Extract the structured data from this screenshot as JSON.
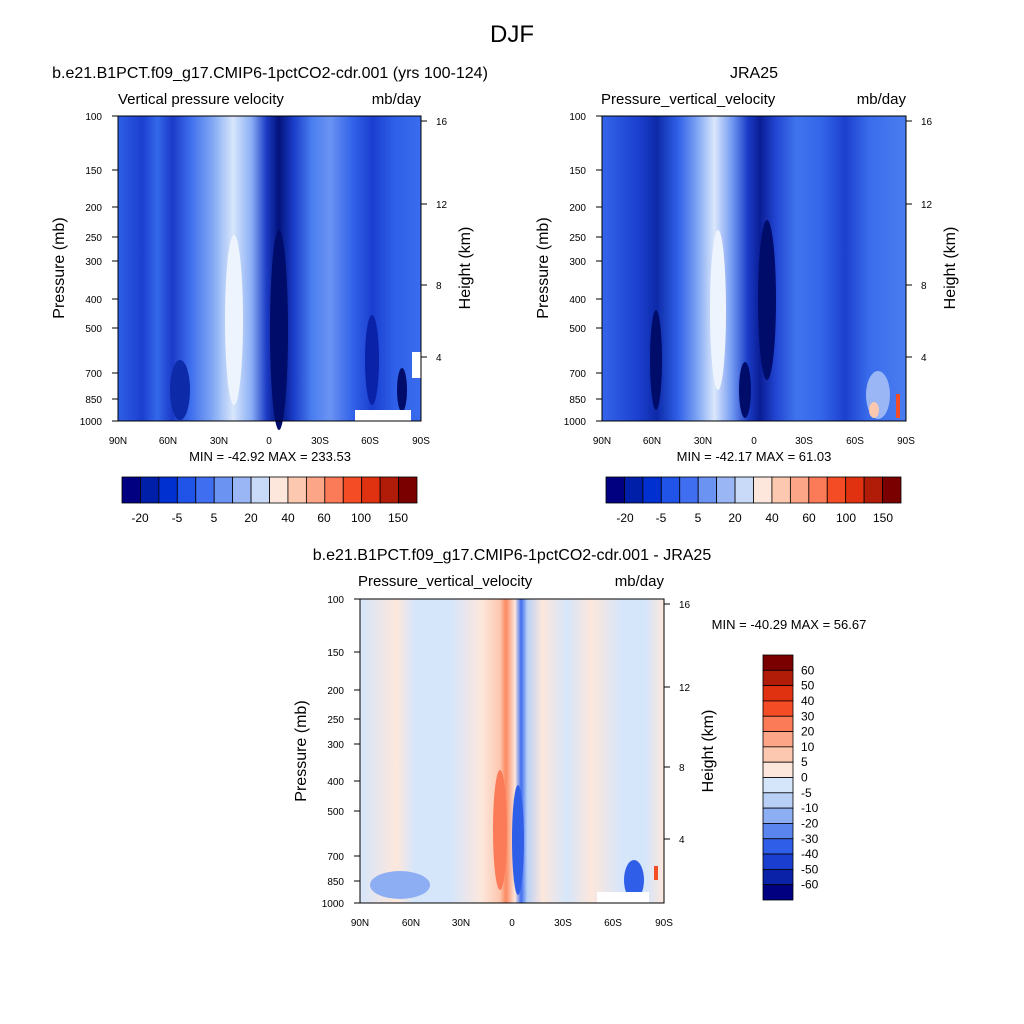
{
  "page": {
    "title": "DJF"
  },
  "chart_data": [
    {
      "type": "heatmap",
      "title": "b.e21.B1PCT.f09_g17.CMIP6-1pctCO2-cdr.001 (yrs 100-124)",
      "left_label": "Vertical pressure velocity",
      "right_label": "mb/day",
      "ylabel": "Pressure (mb)",
      "ylabel_right": "Height (km)",
      "x_ticks": [
        "90N",
        "60N",
        "30N",
        "0",
        "30S",
        "60S",
        "90S"
      ],
      "y_ticks": [
        "100",
        "150",
        "200",
        "250",
        "300",
        "400",
        "500",
        "700",
        "850",
        "1000"
      ],
      "y_ticks_right": [
        "16",
        "12",
        "8",
        "4"
      ],
      "stats": "MIN = -42.92  MAX = 233.53",
      "min": -42.92,
      "max": 233.53,
      "colorbar_labels": [
        "-20",
        "-5",
        "5",
        "20",
        "40",
        "60",
        "100",
        "150"
      ]
    },
    {
      "type": "heatmap",
      "title": "JRA25",
      "left_label": "Pressure_vertical_velocity",
      "right_label": "mb/day",
      "ylabel": "Pressure (mb)",
      "ylabel_right": "Height (km)",
      "x_ticks": [
        "90N",
        "60N",
        "30N",
        "0",
        "30S",
        "60S",
        "90S"
      ],
      "y_ticks": [
        "100",
        "150",
        "200",
        "250",
        "300",
        "400",
        "500",
        "700",
        "850",
        "1000"
      ],
      "y_ticks_right": [
        "16",
        "12",
        "8",
        "4"
      ],
      "stats": "MIN = -42.17  MAX =  61.03",
      "min": -42.17,
      "max": 61.03,
      "colorbar_labels": [
        "-20",
        "-5",
        "5",
        "20",
        "40",
        "60",
        "100",
        "150"
      ]
    },
    {
      "type": "heatmap",
      "title": "b.e21.B1PCT.f09_g17.CMIP6-1pctCO2-cdr.001 - JRA25",
      "left_label": "Pressure_vertical_velocity",
      "right_label": "mb/day",
      "ylabel": "Pressure (mb)",
      "ylabel_right": "Height (km)",
      "x_ticks": [
        "90N",
        "60N",
        "30N",
        "0",
        "30S",
        "60S",
        "90S"
      ],
      "y_ticks": [
        "100",
        "150",
        "200",
        "250",
        "300",
        "400",
        "500",
        "700",
        "850",
        "1000"
      ],
      "y_ticks_right": [
        "16",
        "12",
        "8",
        "4"
      ],
      "stats": "MIN = -40.29  MAX =  56.67",
      "min": -40.29,
      "max": 56.67,
      "colorbar_labels": [
        "60",
        "50",
        "40",
        "30",
        "20",
        "10",
        "5",
        "0",
        "-5",
        "-10",
        "-20",
        "-30",
        "-40",
        "-50",
        "-60"
      ]
    }
  ],
  "colors": {
    "abs_scale": [
      "#000080",
      "#001fa8",
      "#0030d0",
      "#2054e8",
      "#3f6ef0",
      "#6b93f2",
      "#9ab6f5",
      "#c8daf8",
      "#fde7dc",
      "#fcc8b0",
      "#fca587",
      "#fb7b58",
      "#f44c24",
      "#e03210",
      "#b01c08",
      "#7a0000"
    ],
    "diff_scale": [
      "#7a0000",
      "#b01c08",
      "#e03210",
      "#f44c24",
      "#fb7b58",
      "#fca587",
      "#fcc8b0",
      "#fde7dc",
      "#d6e6fa",
      "#b8d0f6",
      "#8eaef3",
      "#5a84ee",
      "#2f5ee8",
      "#1a3fd0",
      "#0a22a8",
      "#000080"
    ]
  }
}
